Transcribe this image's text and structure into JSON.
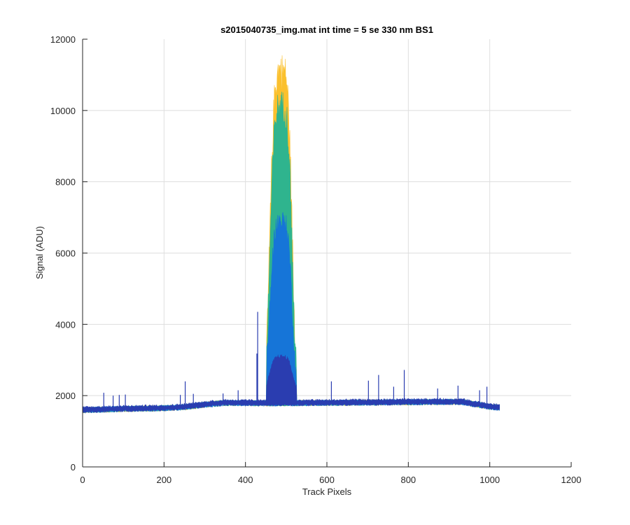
{
  "chart_data": {
    "type": "line",
    "title": "s2015040735_img.mat int time = 5 se  330 nm BS1",
    "xlabel": "Track Pixels",
    "ylabel": "Signal (ADU)",
    "xlim": [
      0,
      1200
    ],
    "ylim": [
      0,
      12000
    ],
    "xticks": [
      0,
      200,
      400,
      600,
      800,
      1000,
      1200
    ],
    "yticks": [
      0,
      2000,
      4000,
      6000,
      8000,
      10000,
      12000
    ],
    "grid": true,
    "legend": "none",
    "n_points": 1024,
    "baseline": {
      "x": [
        1,
        100,
        200,
        250,
        300,
        350,
        450,
        600,
        800,
        930,
        960,
        1000,
        1024
      ],
      "y": [
        1650,
        1680,
        1700,
        1730,
        1800,
        1850,
        1840,
        1850,
        1870,
        1880,
        1820,
        1740,
        1720
      ]
    },
    "noise_amplitude": 70,
    "peak": {
      "x_start": 452,
      "x_end": 525,
      "center": 485,
      "edge_level": 2200
    },
    "spikes": [
      {
        "x": 52,
        "y": 2080
      },
      {
        "x": 75,
        "y": 2000
      },
      {
        "x": 90,
        "y": 2020
      },
      {
        "x": 105,
        "y": 2030
      },
      {
        "x": 240,
        "y": 2020
      },
      {
        "x": 252,
        "y": 2400
      },
      {
        "x": 272,
        "y": 2050
      },
      {
        "x": 345,
        "y": 2060
      },
      {
        "x": 382,
        "y": 2150
      },
      {
        "x": 430,
        "y": 4350
      },
      {
        "x": 428,
        "y": 3180
      },
      {
        "x": 611,
        "y": 2400
      },
      {
        "x": 702,
        "y": 2420
      },
      {
        "x": 727,
        "y": 2580
      },
      {
        "x": 764,
        "y": 2250
      },
      {
        "x": 790,
        "y": 2720
      },
      {
        "x": 872,
        "y": 2200
      },
      {
        "x": 922,
        "y": 2280
      },
      {
        "x": 975,
        "y": 2150
      },
      {
        "x": 993,
        "y": 2250
      }
    ],
    "series": [
      {
        "color": "#fbc02d",
        "peak_max": 11100,
        "offset": 0,
        "smear": 0
      },
      {
        "color": "#2fb48e",
        "peak_max": 10100,
        "offset": 10,
        "smear": 0
      },
      {
        "color": "#1675d8",
        "peak_max": 6900,
        "offset": 30,
        "smear": 0
      },
      {
        "color": "#2a3db0",
        "peak_max": 3100,
        "offset": 60,
        "smear": 0
      }
    ]
  }
}
